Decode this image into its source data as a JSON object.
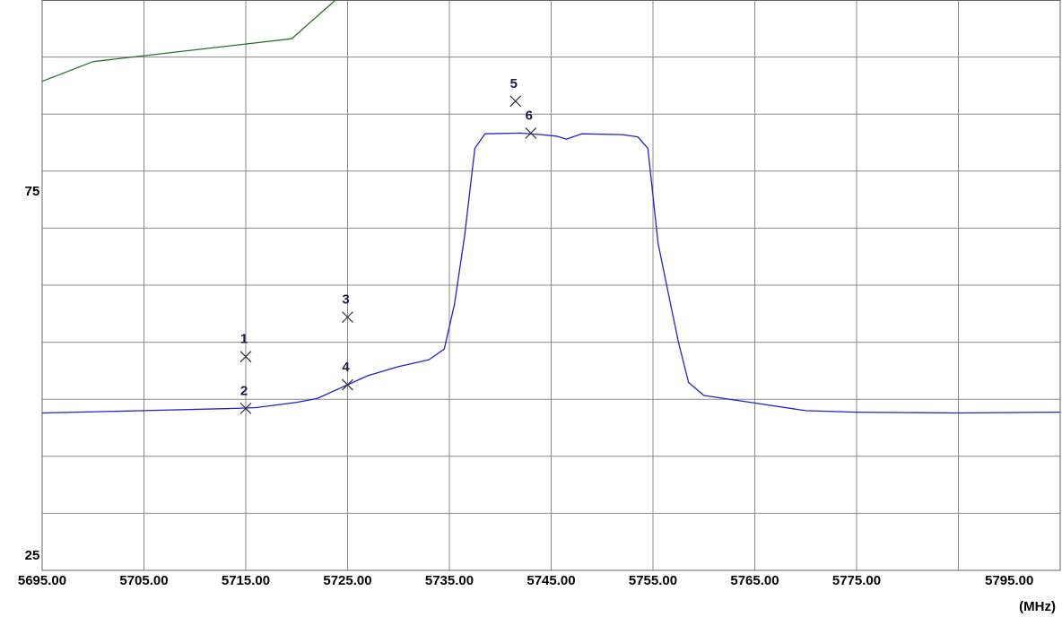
{
  "chart_data": {
    "type": "line",
    "title": "",
    "xlabel": "",
    "ylabel": "",
    "x_unit": "(MHz)",
    "xlim": [
      5695,
      5795
    ],
    "ylim": [
      25,
      100
    ],
    "grid": true,
    "x_ticks": [
      5695,
      5705,
      5715,
      5725,
      5735,
      5745,
      5755,
      5765,
      5775,
      5795
    ],
    "x_tick_labels": [
      "5695.00",
      "5705.00",
      "5715.00",
      "5725.00",
      "5735.00",
      "5745.00",
      "5755.00",
      "5765.00",
      "5775.00",
      "5795.00"
    ],
    "y_tick_labels": [
      {
        "value": 75,
        "label": "75"
      },
      {
        "value": 25,
        "label": "25"
      }
    ],
    "series": [
      {
        "color": "#2e6e2e",
        "x": [
          5695,
          5700,
          5719.5,
          5724.5,
          5795
        ],
        "y": [
          89.3,
          91.9,
          94.9,
          100.8,
          100.8
        ]
      },
      {
        "color": "#2222cc",
        "x": [
          5695,
          5705,
          5714,
          5716,
          5720,
          5722,
          5725,
          5727,
          5730,
          5733,
          5734.5,
          5735.5,
          5736.5,
          5737.5,
          5738.5,
          5742,
          5744,
          5745.5,
          5746.5,
          5748,
          5752,
          5753.5,
          5754.5,
          5755.5,
          5756.5,
          5757.5,
          5758.5,
          5760,
          5765,
          5770,
          5775,
          5785,
          5795
        ],
        "y": [
          45.7,
          46.0,
          46.3,
          46.4,
          47.1,
          47.6,
          49.4,
          50.6,
          51.8,
          52.7,
          54.1,
          60.0,
          69.0,
          80.5,
          82.4,
          82.5,
          82.3,
          82.1,
          81.7,
          82.4,
          82.3,
          82.0,
          80.5,
          68.0,
          61.5,
          55.0,
          49.7,
          48.0,
          47.0,
          46.0,
          45.8,
          45.7,
          45.8
        ]
      }
    ],
    "markers": [
      {
        "label": "1",
        "x": 5715,
        "y": 53.1
      },
      {
        "label": "2",
        "x": 5715,
        "y": 46.3
      },
      {
        "label": "3",
        "x": 5725,
        "y": 58.3
      },
      {
        "label": "4",
        "x": 5725,
        "y": 49.4
      },
      {
        "label": "5",
        "x": 5741.5,
        "y": 86.7
      },
      {
        "label": "6",
        "x": 5743,
        "y": 82.5
      }
    ],
    "colors": {
      "grid": "#888888",
      "axis": "#666666",
      "marker": "#333333"
    }
  }
}
